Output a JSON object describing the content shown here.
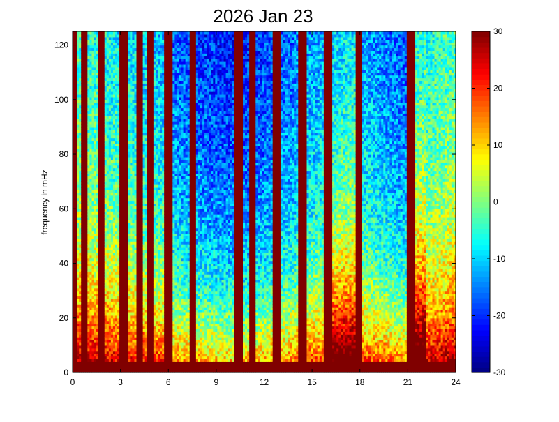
{
  "chart_data": {
    "type": "heatmap",
    "title": "2026 Jan 23",
    "xlabel": "",
    "ylabel": "frequency in mHz",
    "xlim": [
      0,
      24
    ],
    "ylim": [
      0,
      125
    ],
    "x_ticks": [
      "0",
      "3",
      "6",
      "9",
      "12",
      "15",
      "18",
      "21",
      "24"
    ],
    "y_ticks": [
      "0",
      "20",
      "40",
      "60",
      "80",
      "100",
      "120"
    ],
    "colorbar": {
      "range": [
        -30,
        30
      ],
      "ticks": [
        "-30",
        "-20",
        "-10",
        "0",
        "10",
        "20",
        "30"
      ],
      "colormap": "jet"
    },
    "grid": false,
    "saturated_bands_hours": [
      0.1,
      0.7,
      1.8,
      3.1,
      3.3,
      4.2,
      4.9,
      6.0,
      7.5,
      10.4,
      11.3,
      12.8,
      14.4,
      16.0,
      17.9,
      21.2
    ],
    "broad_saturated_bands": [
      {
        "start": 16.0,
        "end": 17.8
      },
      {
        "start": 21.0,
        "end": 22.2
      }
    ],
    "low_frequency_saturated_upto": 4
  }
}
